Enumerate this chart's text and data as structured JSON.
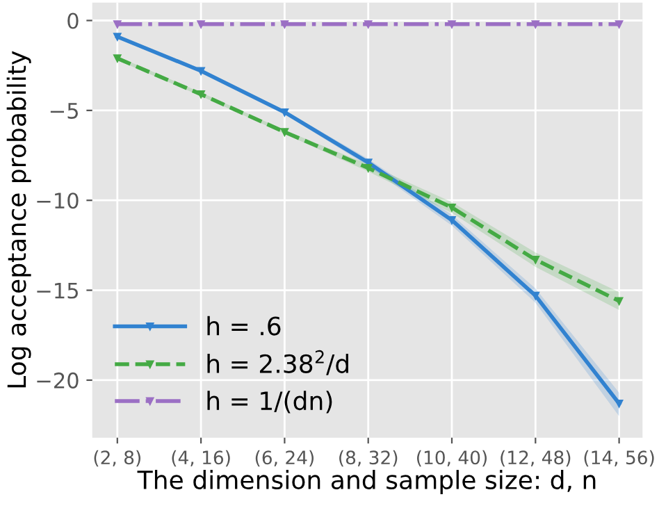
{
  "chart_data": {
    "type": "line",
    "xlabel": "The dimension and sample size: d, n",
    "ylabel": "Log acceptance probability",
    "categories": [
      "(2, 8)",
      "(4, 16)",
      "(6, 24)",
      "(8, 32)",
      "(10, 40)",
      "(12, 48)",
      "(14, 56)"
    ],
    "series": [
      {
        "name": "h = .6",
        "color": "#3182d0",
        "line_style": "solid",
        "values": [
          -0.9,
          -2.8,
          -5.1,
          -7.9,
          -11.1,
          -15.3,
          -21.3
        ],
        "lower": [
          -1.0,
          -2.9,
          -5.2,
          -8.1,
          -11.4,
          -15.7,
          -22.0
        ],
        "upper": [
          -0.8,
          -2.7,
          -5.0,
          -7.7,
          -10.8,
          -14.9,
          -20.7
        ]
      },
      {
        "name": "h = 2.38$^{2}$/d",
        "color": "#44aa44",
        "line_style": "dashed",
        "values": [
          -2.1,
          -4.1,
          -6.2,
          -8.2,
          -10.4,
          -13.3,
          -15.6
        ],
        "lower": [
          -2.2,
          -4.2,
          -6.3,
          -8.4,
          -10.7,
          -13.7,
          -16.1
        ],
        "upper": [
          -2.0,
          -4.0,
          -6.1,
          -8.0,
          -10.1,
          -12.9,
          -15.1
        ]
      },
      {
        "name": "h = 1/(dn)",
        "color": "#9b6fc4",
        "line_style": "dashdot",
        "values": [
          -0.2,
          -0.2,
          -0.2,
          -0.2,
          -0.2,
          -0.2,
          -0.2
        ]
      }
    ],
    "marker": "triangle",
    "ylim": [
      -23.2,
      1
    ],
    "yticks": [
      0,
      {
        "value": -5,
        "label": "−5"
      },
      {
        "value": -10,
        "label": "−10"
      },
      {
        "value": -15,
        "label": "−15"
      },
      {
        "value": -20,
        "label": "−20"
      }
    ],
    "grid": true,
    "legend": "bottom left"
  }
}
